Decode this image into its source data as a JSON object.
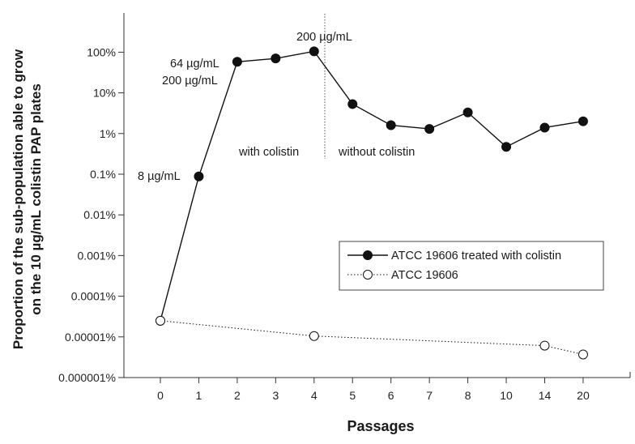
{
  "chart_data": {
    "type": "line",
    "xlabel": "Passages",
    "ylabel": [
      "Proportion of the sub-population able to grow",
      "on the 10 µg/mL colistin PAP plates"
    ],
    "y_scale": "log",
    "ylim": [
      1e-08,
      10
    ],
    "y_tick_values": [
      1e-08,
      1e-07,
      1e-06,
      1e-05,
      0.0001,
      0.001,
      0.01,
      0.1,
      1
    ],
    "y_tick_labels": [
      "0.000001%",
      "0.00001%",
      "0.0001%",
      "0.001%",
      "0.01%",
      "0.1%",
      "1%",
      "10%",
      "100%"
    ],
    "x_categories": [
      "0",
      "1",
      "2",
      "3",
      "4",
      "5",
      "6",
      "7",
      "8",
      "10",
      "14",
      "20"
    ],
    "grid": false,
    "legend_position": "lower-right",
    "series": [
      {
        "name": "ATCC 19606 treated with colistin",
        "marker": "filled-circle",
        "line_style": "solid",
        "color": "#111111",
        "points": [
          {
            "x": "0",
            "y": 2.5e-07
          },
          {
            "x": "1",
            "y": 0.00088
          },
          {
            "x": "2",
            "y": 0.58
          },
          {
            "x": "3",
            "y": 0.7
          },
          {
            "x": "4",
            "y": 1.05
          },
          {
            "x": "5",
            "y": 0.053
          },
          {
            "x": "6",
            "y": 0.016
          },
          {
            "x": "7",
            "y": 0.013
          },
          {
            "x": "8",
            "y": 0.033
          },
          {
            "x": "10",
            "y": 0.0047
          },
          {
            "x": "14",
            "y": 0.014
          },
          {
            "x": "20",
            "y": 0.02
          }
        ]
      },
      {
        "name": "ATCC 19606",
        "marker": "open-circle",
        "line_style": "dotted",
        "color": "#111111",
        "points": [
          {
            "x": "0",
            "y": 2.5e-07
          },
          {
            "x": "4",
            "y": 1.05e-07
          },
          {
            "x": "14",
            "y": 6.1e-08
          },
          {
            "x": "20",
            "y": 3.7e-08
          }
        ]
      }
    ],
    "annotations": {
      "p1": "8 µg/mL",
      "p2": "64 µg/mL",
      "p3": "200 µg/mL",
      "p4": "200 µg/mL",
      "with": "with colistin",
      "without": "without colistin"
    }
  }
}
